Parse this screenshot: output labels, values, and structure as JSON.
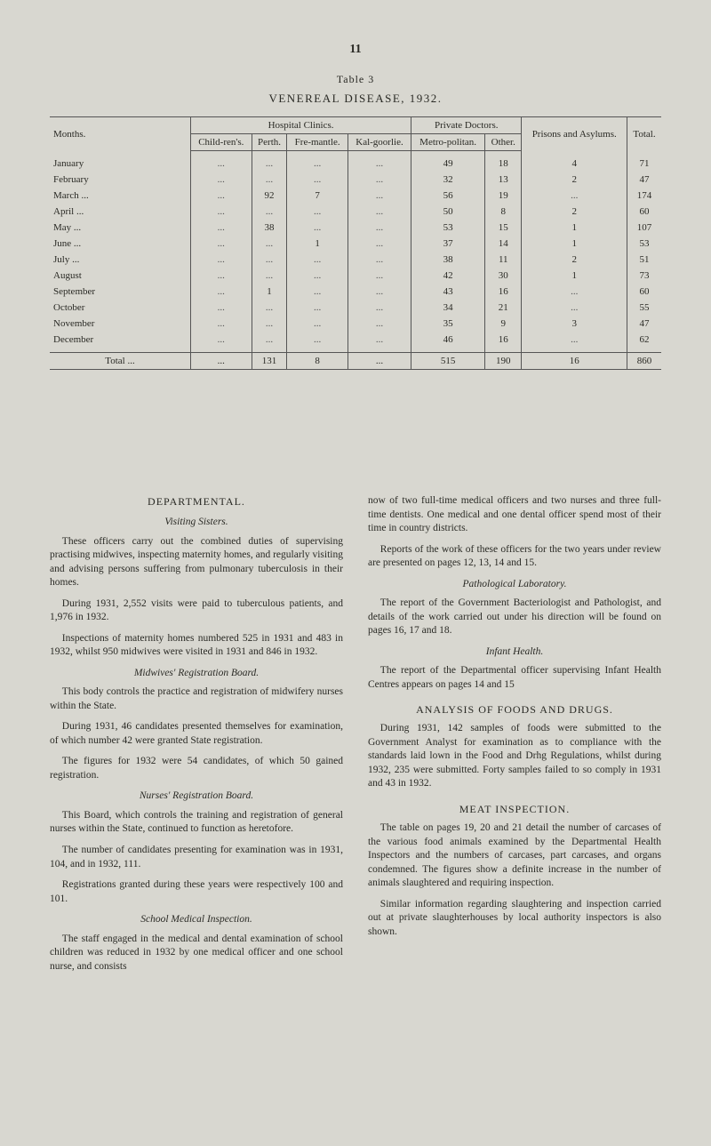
{
  "page_number": "11",
  "table": {
    "caption": "Table 3",
    "title": "VENEREAL DISEASE, 1932.",
    "group_headers": {
      "months": "Months.",
      "hospital": "Hospital Clinics.",
      "private": "Private Doctors.",
      "prisons": "Prisons and Asylums.",
      "total": "Total."
    },
    "sub_headers": {
      "childrens": "Child-ren's.",
      "perth": "Perth.",
      "fremantle": "Fre-mantle.",
      "kalgoorlie": "Kal-goorlie.",
      "metropolitan": "Metro-politan.",
      "other": "Other."
    },
    "rows": [
      {
        "month": "January",
        "childrens": "...",
        "perth": "...",
        "fremantle": "...",
        "kalgoorlie": "...",
        "metro": "49",
        "other": "18",
        "prisons": "4",
        "total": "71"
      },
      {
        "month": "February",
        "childrens": "...",
        "perth": "...",
        "fremantle": "...",
        "kalgoorlie": "...",
        "metro": "32",
        "other": "13",
        "prisons": "2",
        "total": "47"
      },
      {
        "month": "March ...",
        "childrens": "...",
        "perth": "92",
        "fremantle": "7",
        "kalgoorlie": "...",
        "metro": "56",
        "other": "19",
        "prisons": "...",
        "total": "174"
      },
      {
        "month": "April ...",
        "childrens": "...",
        "perth": "...",
        "fremantle": "...",
        "kalgoorlie": "...",
        "metro": "50",
        "other": "8",
        "prisons": "2",
        "total": "60"
      },
      {
        "month": "May ...",
        "childrens": "...",
        "perth": "38",
        "fremantle": "...",
        "kalgoorlie": "...",
        "metro": "53",
        "other": "15",
        "prisons": "1",
        "total": "107"
      },
      {
        "month": "June ...",
        "childrens": "...",
        "perth": "...",
        "fremantle": "1",
        "kalgoorlie": "...",
        "metro": "37",
        "other": "14",
        "prisons": "1",
        "total": "53"
      },
      {
        "month": "July ...",
        "childrens": "...",
        "perth": "...",
        "fremantle": "...",
        "kalgoorlie": "...",
        "metro": "38",
        "other": "11",
        "prisons": "2",
        "total": "51"
      },
      {
        "month": "August",
        "childrens": "...",
        "perth": "...",
        "fremantle": "...",
        "kalgoorlie": "...",
        "metro": "42",
        "other": "30",
        "prisons": "1",
        "total": "73"
      },
      {
        "month": "September",
        "childrens": "...",
        "perth": "1",
        "fremantle": "...",
        "kalgoorlie": "...",
        "metro": "43",
        "other": "16",
        "prisons": "...",
        "total": "60"
      },
      {
        "month": "October",
        "childrens": "...",
        "perth": "...",
        "fremantle": "...",
        "kalgoorlie": "...",
        "metro": "34",
        "other": "21",
        "prisons": "...",
        "total": "55"
      },
      {
        "month": "November",
        "childrens": "...",
        "perth": "...",
        "fremantle": "...",
        "kalgoorlie": "...",
        "metro": "35",
        "other": "9",
        "prisons": "3",
        "total": "47"
      },
      {
        "month": "December",
        "childrens": "...",
        "perth": "...",
        "fremantle": "...",
        "kalgoorlie": "...",
        "metro": "46",
        "other": "16",
        "prisons": "...",
        "total": "62"
      }
    ],
    "total_row": {
      "label": "Total ...",
      "childrens": "...",
      "perth": "131",
      "fremantle": "8",
      "kalgoorlie": "...",
      "metro": "515",
      "other": "190",
      "prisons": "16",
      "total": "860"
    }
  },
  "left": {
    "h_departmental": "DEPARTMENTAL.",
    "h_visiting": "Visiting Sisters.",
    "p1": "These officers carry out the combined duties of supervising practising midwives, inspecting maternity homes, and regularly visiting and advising persons suffering from pulmonary tuberculosis in their homes.",
    "p2": "During 1931, 2,552 visits were paid to tuberculous patients, and 1,976 in 1932.",
    "p3": "Inspections of maternity homes numbered 525 in 1931 and 483 in 1932, whilst 950 midwives were visited in 1931 and 846 in 1932.",
    "h_midwives": "Midwives' Registration Board.",
    "p4": "This body controls the practice and registration of midwifery nurses within the State.",
    "p5": "During 1931, 46 candidates presented themselves for examination, of which number 42 were granted State registration.",
    "p6": "The figures for 1932 were 54 candidates, of which 50 gained registration.",
    "h_nurses": "Nurses' Registration Board.",
    "p7": "This Board, which controls the training and registration of general nurses within the State, continued to function as heretofore.",
    "p8": "The number of candidates presenting for examination was in 1931, 104, and in 1932, 111.",
    "p9": "Registrations granted during these years were respectively 100 and 101.",
    "h_school": "School Medical Inspection.",
    "p10": "The staff engaged in the medical and dental examination of school children was reduced in 1932 by one medical officer and one school nurse, and consists"
  },
  "right": {
    "p1": "now of two full-time medical officers and two nurses and three full-time dentists. One medical and one dental officer spend most of their time in country districts.",
    "p2": "Reports of the work of these officers for the two years under review are presented on pages 12, 13, 14 and 15.",
    "h_path": "Pathological Laboratory.",
    "p3": "The report of the Government Bacteriologist and Pathologist, and details of the work carried out under his direction will be found on pages 16, 17 and 18.",
    "h_infant": "Infant Health.",
    "p4": "The report of the Departmental officer supervising Infant Health Centres appears on pages 14 and 15",
    "h_analysis": "ANALYSIS OF FOODS AND DRUGS.",
    "p5": "During 1931, 142 samples of foods were submitted to the Government Analyst for examination as to compliance with the standards laid lown in the Food and Drhg Regulations, whilst during 1932, 235 were submitted. Forty samples failed to so comply in 1931 and 43 in 1932.",
    "h_meat": "MEAT INSPECTION.",
    "p6": "The table on pages 19, 20 and 21 detail the number of carcases of the various food animals examined by the Departmental Health Inspectors and the numbers of carcases, part carcases, and organs condemned. The figures show a definite increase in the number of animals slaughtered and requiring inspection.",
    "p7": "Similar information regarding slaughtering and inspection carried out at private slaughterhouses by local authority inspectors is also shown."
  }
}
